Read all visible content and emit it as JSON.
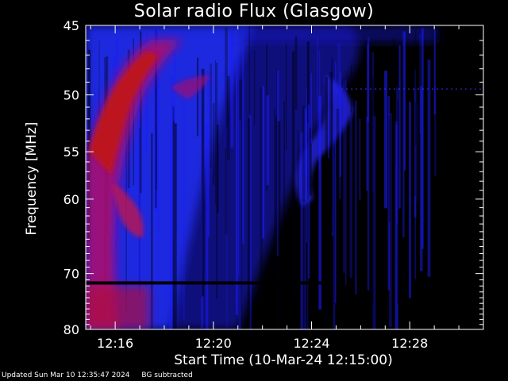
{
  "chart_data": {
    "type": "heatmap",
    "title": "Solar radio Flux (Glasgow)",
    "ylabel": "Frequency [MHz]",
    "xlabel": "Start Time (10-Mar-24 12:15:00)",
    "y_ticks": [
      45,
      50,
      55,
      60,
      70,
      80
    ],
    "ylim": [
      45,
      80
    ],
    "y_scale": "reciprocal",
    "x_ticks": [
      "12:16",
      "12:20",
      "12:24",
      "12:28"
    ],
    "x_tick_minutes": [
      16,
      20,
      24,
      28
    ],
    "xlim_minutes": [
      14.8,
      31.0
    ],
    "colormap": [
      "#000000",
      "#1010ff",
      "#c00060",
      "#ff0000"
    ],
    "burst": {
      "description_type": "type III drifting burst",
      "peak_color": "#c01818"
    }
  },
  "footer": {
    "updated": "Updated Sun Mar 10 12:35:47 2024",
    "note": "BG subtracted"
  }
}
